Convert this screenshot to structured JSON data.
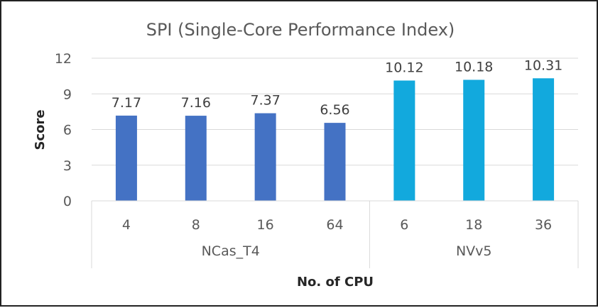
{
  "chart_data": {
    "type": "bar",
    "title": "SPI (Single-Core Performance Index)",
    "xlabel": "No. of CPU",
    "ylabel": "Score",
    "ylim": [
      0,
      12
    ],
    "yticks": [
      0,
      3,
      6,
      9,
      12
    ],
    "grid": true,
    "legend": "none",
    "groups": [
      {
        "name": "NCas_T4",
        "color": "#4472C4",
        "categories": [
          "4",
          "8",
          "16",
          "64"
        ],
        "values": [
          7.17,
          7.16,
          7.37,
          6.56
        ],
        "value_labels": [
          "7.17",
          "7.16",
          "7.37",
          "6.56"
        ]
      },
      {
        "name": "NVv5",
        "color": "#12A9DD",
        "categories": [
          "6",
          "18",
          "36"
        ],
        "values": [
          10.12,
          10.18,
          10.31
        ],
        "value_labels": [
          "10.12",
          "10.18",
          "10.31"
        ]
      }
    ]
  },
  "colors": {
    "gridline": "#D9D9D9",
    "text": "#595959",
    "axis_title": "#262626",
    "frame": "#222222"
  }
}
